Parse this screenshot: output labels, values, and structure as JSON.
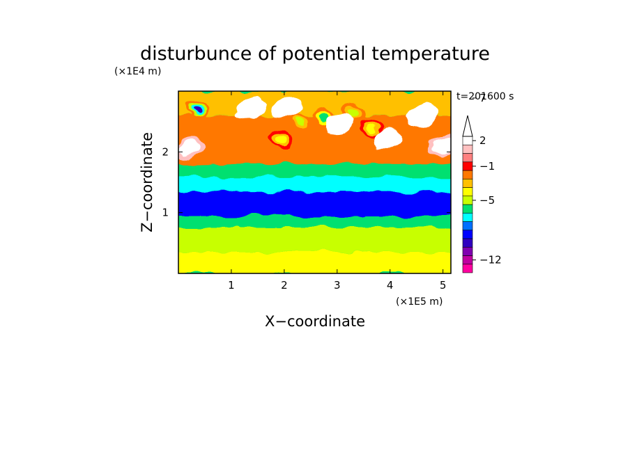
{
  "chart_data": {
    "type": "heatmap",
    "title": "disturbunce of potential temperature",
    "xlabel": "X−coordinate",
    "ylabel": "Z−coordinate",
    "x_unit": "(×1E5 m)",
    "y_unit": "(×1E4 m)",
    "time_label": "t=201600 s",
    "xlim": [
      0,
      5.15
    ],
    "ylim": [
      0,
      3.0
    ],
    "x_ticks": [
      "1",
      "2",
      "3",
      "4",
      "5"
    ],
    "x_tick_values": [
      1,
      2,
      3,
      4,
      5
    ],
    "y_ticks": [
      "1",
      "2"
    ],
    "y_tick_values": [
      1,
      2
    ],
    "colorbar": {
      "tick_labels": [
        "7",
        "2",
        "−1",
        "−5",
        "−12"
      ],
      "tick_values": [
        7,
        2,
        -1,
        -5,
        -12
      ],
      "extend": "max",
      "colors": [
        "#ff00a0",
        "#c000a0",
        "#8000b0",
        "#3000c0",
        "#0000ff",
        "#0070ff",
        "#00ffff",
        "#00e070",
        "#c8ff00",
        "#ffff00",
        "#ffc000",
        "#ff7800",
        "#ff0000",
        "#ff8080",
        "#ffc0c0",
        "#ffffff"
      ]
    },
    "field_bands": [
      {
        "z": [
          0.0,
          0.35
        ],
        "level": "0 to 1",
        "color": "#ffff00"
      },
      {
        "z": [
          0.35,
          0.75
        ],
        "level": "0 to 1",
        "color": "#c8ff00"
      },
      {
        "z": [
          0.75,
          0.95
        ],
        "level": "-1 to 0",
        "color": "#00e070"
      },
      {
        "z": [
          0.95,
          1.35
        ],
        "level": "-3 to -2",
        "color": "#0000ff"
      },
      {
        "z": [
          1.35,
          1.6
        ],
        "level": "-2 to -1",
        "color": "#00ffff"
      },
      {
        "z": [
          1.6,
          1.8
        ],
        "level": "-1 to 0",
        "color": "#00e070"
      },
      {
        "z": [
          1.8,
          2.6
        ],
        "level": "2 to 5",
        "color": "#ff7800"
      },
      {
        "z": [
          2.6,
          3.0
        ],
        "level": "1 to 2",
        "color": "#ffc000"
      }
    ],
    "features": [
      {
        "name": "cold core",
        "x": 0.35,
        "z": 2.7,
        "value": -10
      },
      {
        "name": "warm layer",
        "x": 0.2,
        "z": 2.05,
        "value": 4
      },
      {
        "name": "warm layer",
        "x": 5.0,
        "z": 2.1,
        "value": 4
      },
      {
        "name": "wave cold cell",
        "x": 1.95,
        "z": 2.2,
        "value": -4
      },
      {
        "name": "wave cold cell",
        "x": 2.3,
        "z": 2.5,
        "value": -5
      },
      {
        "name": "wave cold cell",
        "x": 2.75,
        "z": 2.55,
        "value": -6
      },
      {
        "name": "wave cold cell",
        "x": 3.3,
        "z": 2.65,
        "value": -5
      },
      {
        "name": "wave cold cell",
        "x": 3.65,
        "z": 2.4,
        "value": -4
      },
      {
        "name": "wave warm cell",
        "x": 1.35,
        "z": 2.7,
        "value": 6
      },
      {
        "name": "wave warm cell",
        "x": 2.05,
        "z": 2.75,
        "value": 7
      },
      {
        "name": "wave warm cell",
        "x": 3.05,
        "z": 2.45,
        "value": 6
      },
      {
        "name": "wave warm cell",
        "x": 3.95,
        "z": 2.2,
        "value": 5
      },
      {
        "name": "wave warm cell",
        "x": 4.6,
        "z": 2.6,
        "value": 6
      }
    ]
  }
}
